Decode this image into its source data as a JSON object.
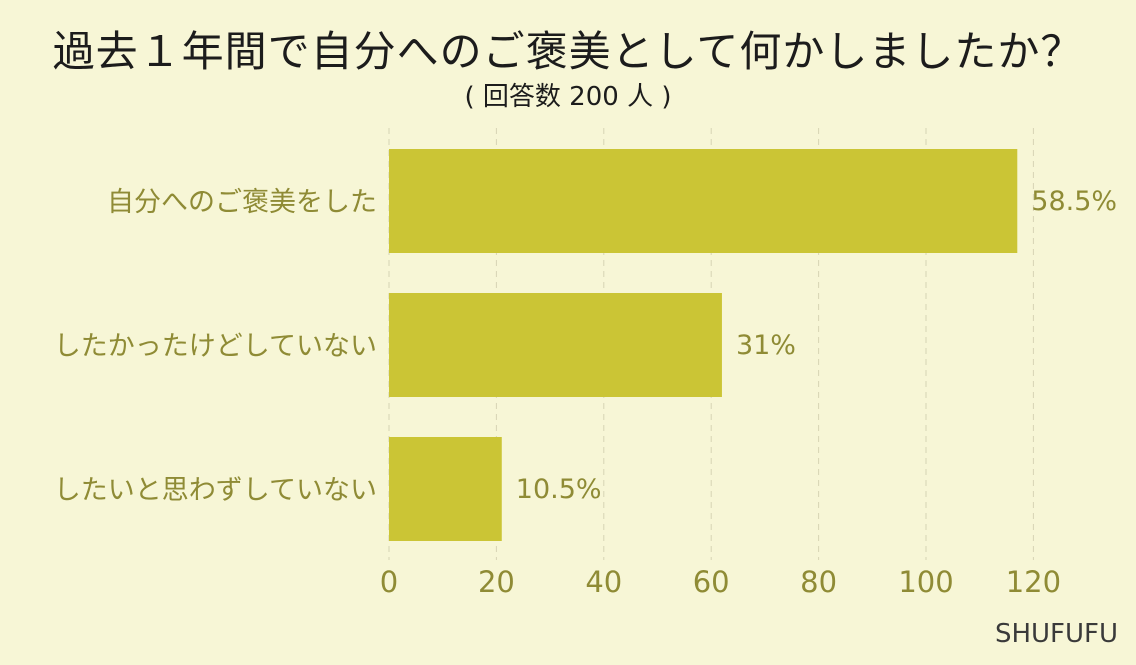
{
  "title": "過去１年間で自分へのご褒美として何かしましたか？",
  "subtitle": "( 回答数 200 人 )",
  "watermark": "SHUFUFU",
  "chart_data": {
    "type": "bar",
    "orientation": "horizontal",
    "categories": [
      "自分へのご褒美をした",
      "したかったけどしていない",
      "したいと思わずしていない"
    ],
    "values": [
      117,
      62,
      21
    ],
    "value_labels": [
      "58.5%",
      "31%",
      "10.5%"
    ],
    "xlim": [
      0,
      135
    ],
    "xticks": [
      0,
      20,
      40,
      60,
      80,
      100,
      120
    ],
    "grid": true,
    "colors": {
      "bar": "#cbc535",
      "label": "#8f8b35",
      "grid": "#d6d4b4",
      "axis": "#8f8b35"
    }
  }
}
